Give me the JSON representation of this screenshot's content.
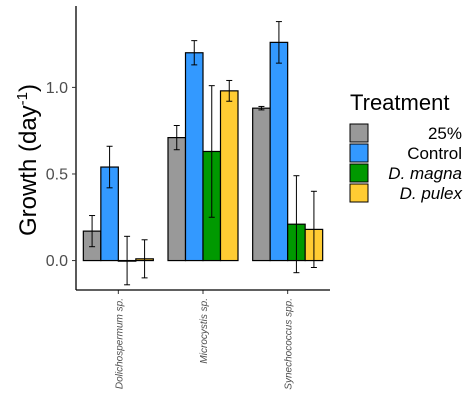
{
  "chart_data": {
    "type": "bar",
    "categories": [
      "Dolichospermum sp.",
      "Microcystis sp.",
      "Synechococcus spp."
    ],
    "series": [
      {
        "name": "25%",
        "color": "#999999",
        "values": [
          0.17,
          0.71,
          0.88
        ],
        "errors": [
          0.09,
          0.07,
          0.01
        ]
      },
      {
        "name": "Control",
        "color": "#3399ff",
        "values": [
          0.54,
          1.2,
          1.26
        ],
        "errors": [
          0.12,
          0.07,
          0.12
        ]
      },
      {
        "name": "D. magna",
        "color": "#009900",
        "values": [
          0.0,
          0.63,
          0.21
        ],
        "errors": [
          0.14,
          0.38,
          0.28
        ],
        "italic": true
      },
      {
        "name": "D. pulex",
        "color": "#ffcc33",
        "values": [
          0.01,
          0.98,
          0.18
        ],
        "errors": [
          0.11,
          0.06,
          0.22
        ],
        "italic": true
      }
    ],
    "ylabel_main": "Growth (day",
    "ylabel_sup": "-1",
    "ylabel_close": ")",
    "xlabel": "",
    "ylim": [
      -0.17,
      1.47
    ],
    "yticks": [
      0.0,
      0.5,
      1.0
    ],
    "ytick_labels": [
      "0.0",
      "0.5",
      "1.0"
    ],
    "grid": false,
    "legend_title": "Treatment",
    "legend_position": "right"
  }
}
